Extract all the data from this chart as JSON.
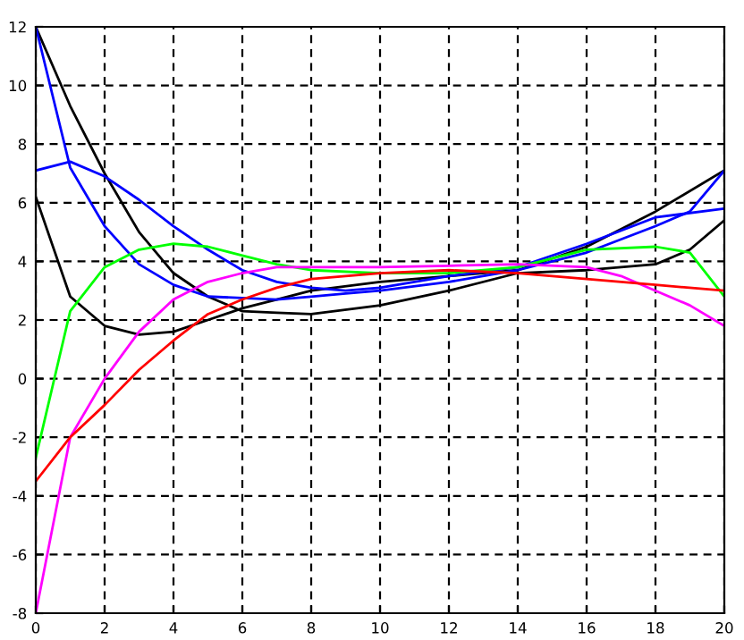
{
  "chart_data": {
    "type": "line",
    "xlim": [
      0,
      20
    ],
    "ylim": [
      -8,
      12
    ],
    "xticks": [
      0,
      2,
      4,
      6,
      8,
      10,
      12,
      14,
      16,
      18,
      20
    ],
    "yticks": [
      -8,
      -6,
      -4,
      -2,
      0,
      2,
      4,
      6,
      8,
      10,
      12
    ],
    "grid": true,
    "line_style": "solid",
    "series": [
      {
        "color": "#000000",
        "x": [
          0,
          1,
          2,
          3,
          4,
          5,
          6,
          7,
          8,
          10,
          12,
          14,
          16,
          18,
          19,
          20
        ],
        "values": [
          12,
          9.3,
          7.0,
          5.0,
          3.6,
          2.8,
          2.3,
          2.25,
          2.2,
          2.5,
          3.0,
          3.6,
          3.7,
          3.9,
          4.4,
          5.4
        ]
      },
      {
        "color": "#000000",
        "x": [
          0,
          1,
          2,
          3,
          4,
          5,
          6,
          7,
          8,
          10,
          12,
          14,
          16,
          18,
          20
        ],
        "values": [
          6.2,
          2.8,
          1.8,
          1.5,
          1.6,
          2.0,
          2.4,
          2.7,
          3.0,
          3.3,
          3.5,
          3.7,
          4.5,
          5.7,
          7.1
        ]
      },
      {
        "color": "#0000ff",
        "x": [
          0,
          1,
          2,
          3,
          4,
          5,
          6,
          7,
          8,
          9,
          10,
          12,
          14,
          16,
          18,
          19,
          20
        ],
        "values": [
          12,
          7.2,
          5.2,
          3.9,
          3.2,
          2.8,
          2.75,
          2.7,
          2.8,
          2.9,
          3.0,
          3.3,
          3.7,
          4.3,
          5.2,
          5.7,
          7.1
        ]
      },
      {
        "color": "#0000ff",
        "x": [
          0,
          1,
          2,
          3,
          4,
          5,
          6,
          7,
          8,
          9,
          10,
          12,
          14,
          16,
          18,
          20
        ],
        "values": [
          7.1,
          7.4,
          6.9,
          6.1,
          5.2,
          4.4,
          3.7,
          3.3,
          3.1,
          3.0,
          3.1,
          3.5,
          3.8,
          4.6,
          5.5,
          5.8
        ]
      },
      {
        "color": "#00ff00",
        "x": [
          0,
          1,
          2,
          3,
          4,
          5,
          6,
          7,
          8,
          10,
          12,
          14,
          16,
          18,
          19,
          20
        ],
        "values": [
          -2.7,
          2.3,
          3.8,
          4.4,
          4.6,
          4.5,
          4.2,
          3.9,
          3.7,
          3.6,
          3.6,
          3.8,
          4.4,
          4.5,
          4.3,
          2.8
        ]
      },
      {
        "color": "#ff00ff",
        "x": [
          0,
          1,
          2,
          3,
          4,
          5,
          6,
          7,
          8,
          10,
          12,
          14,
          16,
          17,
          18,
          19,
          20
        ],
        "values": [
          -8,
          -2,
          0,
          1.6,
          2.7,
          3.3,
          3.6,
          3.8,
          3.8,
          3.8,
          3.85,
          3.9,
          3.8,
          3.5,
          3.0,
          2.5,
          1.8
        ]
      },
      {
        "color": "#ff0000",
        "x": [
          0,
          1,
          2,
          3,
          4,
          5,
          6,
          7,
          8,
          10,
          12,
          14,
          16,
          18,
          20
        ],
        "values": [
          -3.5,
          -2.0,
          -0.9,
          0.3,
          1.3,
          2.2,
          2.7,
          3.1,
          3.4,
          3.6,
          3.7,
          3.6,
          3.4,
          3.2,
          3.0
        ]
      }
    ]
  }
}
